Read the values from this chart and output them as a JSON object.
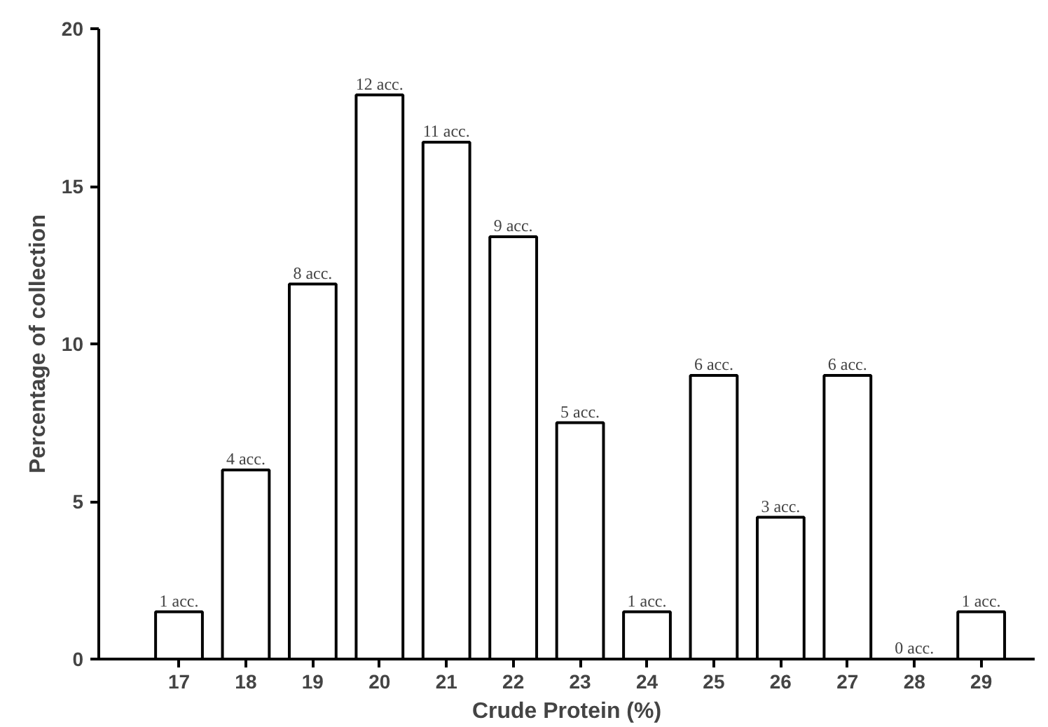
{
  "chart_data": {
    "type": "bar",
    "xlabel": "Crude Protein (%)",
    "ylabel": "Percentage of collection",
    "x": [
      17,
      18,
      19,
      20,
      21,
      22,
      23,
      24,
      25,
      26,
      27,
      28,
      29
    ],
    "values": [
      1.5,
      6,
      11.9,
      17.9,
      16.4,
      13.4,
      7.5,
      1.5,
      9,
      4.5,
      9,
      0,
      1.5
    ],
    "annotations": [
      {
        "text": "1 acc.",
        "x": 17,
        "y": 1.5
      },
      {
        "text": "4 acc.",
        "x": 18,
        "y": 6
      },
      {
        "text": "8 acc.",
        "x": 19,
        "y": 11.9
      },
      {
        "text": "12 acc.",
        "x": 20,
        "y": 17.9
      },
      {
        "text": "11 acc.",
        "x": 21,
        "y": 16.4
      },
      {
        "text": "9 acc.",
        "x": 22,
        "y": 13.4
      },
      {
        "text": "5 acc.",
        "x": 23,
        "y": 7.5
      },
      {
        "text": "1 acc.",
        "x": 24,
        "y": 1.5
      },
      {
        "text": "6 acc.",
        "x": 25,
        "y": 9
      },
      {
        "text": "3 acc.",
        "x": 26,
        "y": 4.5
      },
      {
        "text": "6 acc.",
        "x": 27,
        "y": 9
      },
      {
        "text": "0 acc.",
        "x": 28,
        "y": 0
      },
      {
        "text": "1 acc.",
        "x": 29,
        "y": 1.5
      }
    ],
    "color": "#ffffff",
    "xlim": [
      15.8,
      29.8
    ],
    "xticks": [
      17,
      18,
      19,
      20,
      21,
      22,
      23,
      24,
      25,
      26,
      27,
      28,
      29
    ],
    "ylim": [
      0,
      20
    ],
    "yticks": [
      0,
      5,
      10,
      15,
      20
    ],
    "grid": false
  }
}
